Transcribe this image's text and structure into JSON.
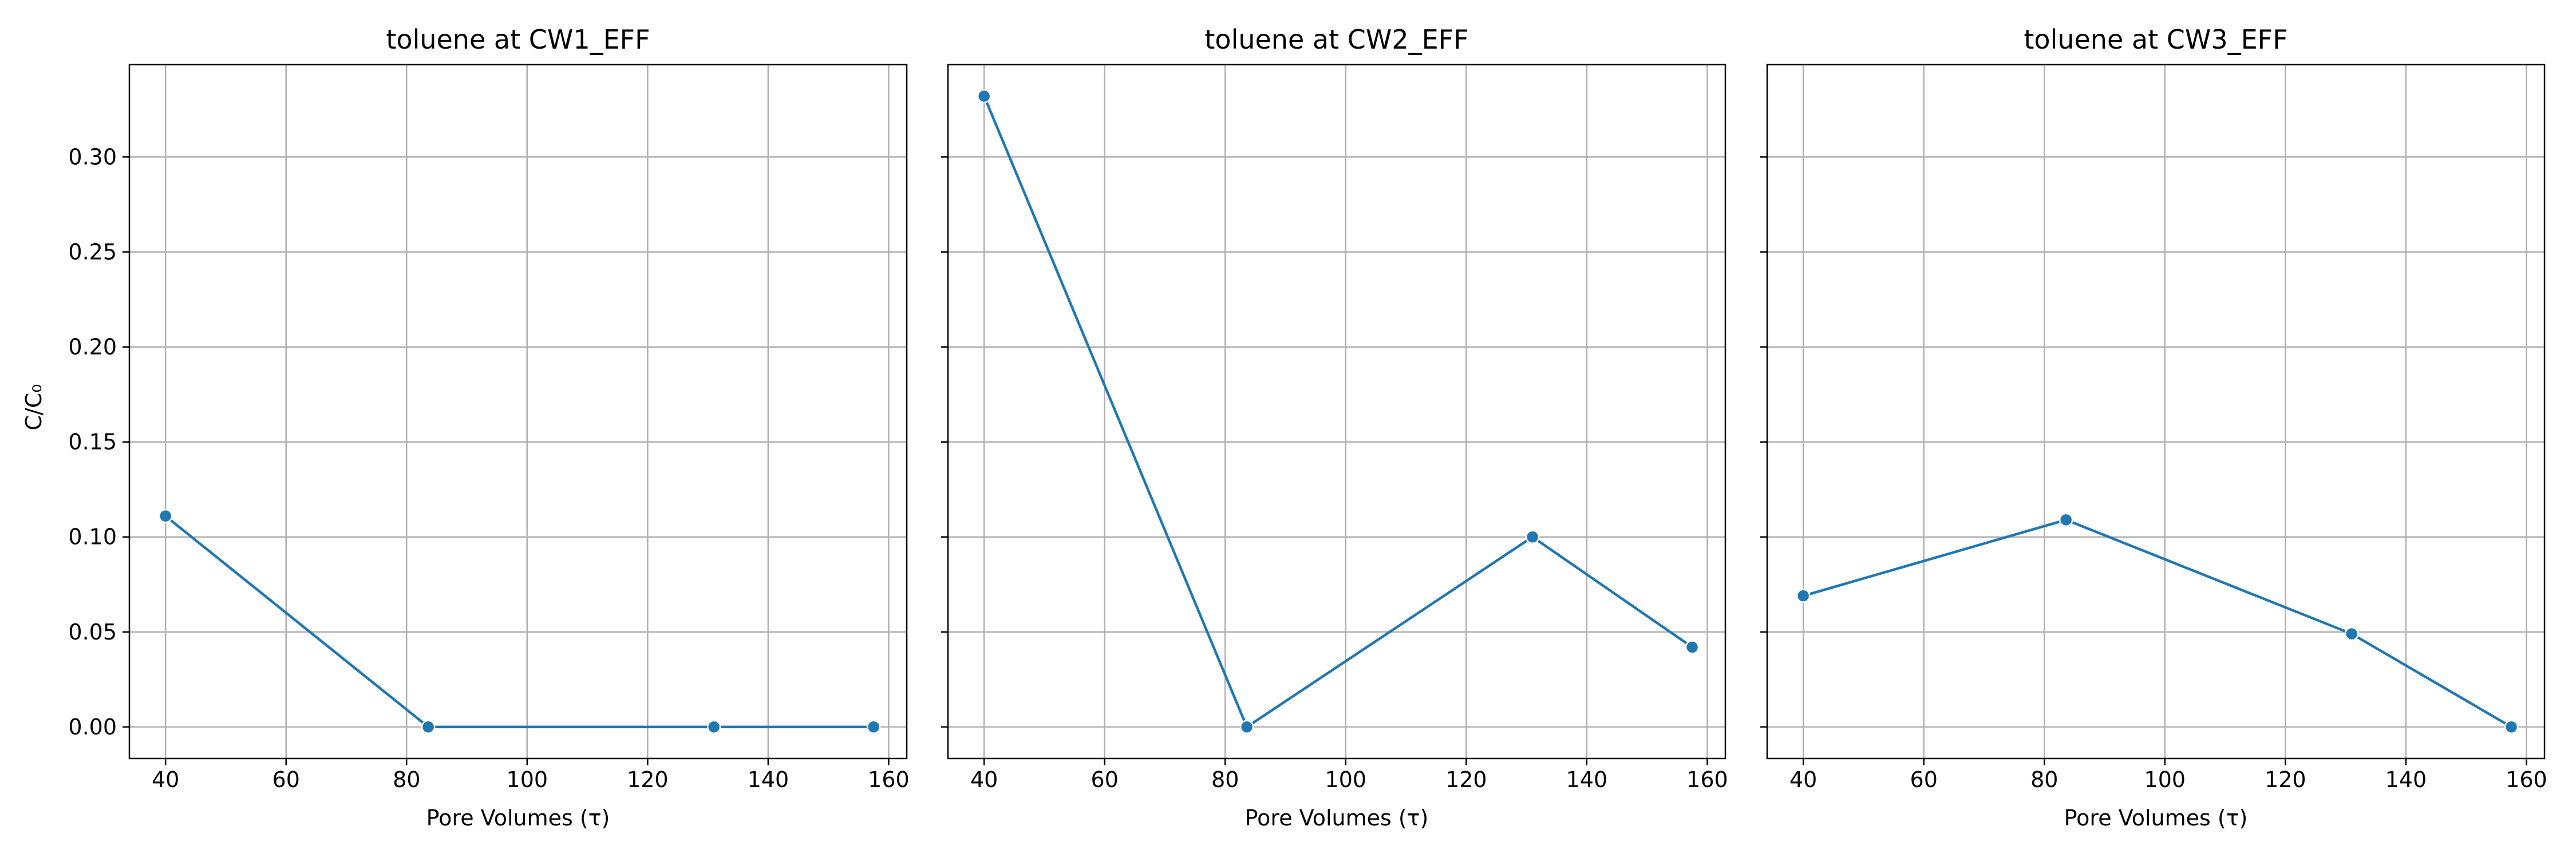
{
  "chart_data": [
    {
      "type": "line",
      "title": "toluene at CW1_EFF",
      "xlabel": "Pore Volumes (τ)",
      "ylabel": "C/C₀",
      "xlim": [
        34,
        163
      ],
      "ylim": [
        -0.0166,
        0.3486
      ],
      "xticks": [
        40,
        60,
        80,
        100,
        120,
        140,
        160
      ],
      "yticks": [
        0.0,
        0.05,
        0.1,
        0.15,
        0.2,
        0.25,
        0.3
      ],
      "ytick_labels": [
        "0.00",
        "0.05",
        "0.10",
        "0.15",
        "0.20",
        "0.25",
        "0.30"
      ],
      "show_yticklabels": true,
      "grid": true,
      "color": "#1f77b4",
      "x": [
        40,
        83.6,
        131,
        157.5
      ],
      "y": [
        0.111,
        0.0,
        0.0,
        0.0
      ]
    },
    {
      "type": "line",
      "title": "toluene at CW2_EFF",
      "xlabel": "Pore Volumes (τ)",
      "ylabel": "",
      "xlim": [
        34,
        163
      ],
      "ylim": [
        -0.0166,
        0.3486
      ],
      "xticks": [
        40,
        60,
        80,
        100,
        120,
        140,
        160
      ],
      "yticks": [
        0.0,
        0.05,
        0.1,
        0.15,
        0.2,
        0.25,
        0.3
      ],
      "ytick_labels": [
        "0.00",
        "0.05",
        "0.10",
        "0.15",
        "0.20",
        "0.25",
        "0.30"
      ],
      "show_yticklabels": false,
      "grid": true,
      "color": "#1f77b4",
      "x": [
        40,
        83.6,
        131,
        157.5
      ],
      "y": [
        0.332,
        0.0,
        0.1,
        0.042
      ]
    },
    {
      "type": "line",
      "title": "toluene at CW3_EFF",
      "xlabel": "Pore Volumes (τ)",
      "ylabel": "",
      "xlim": [
        34,
        163
      ],
      "ylim": [
        -0.0166,
        0.3486
      ],
      "xticks": [
        40,
        60,
        80,
        100,
        120,
        140,
        160
      ],
      "yticks": [
        0.0,
        0.05,
        0.1,
        0.15,
        0.2,
        0.25,
        0.3
      ],
      "ytick_labels": [
        "0.00",
        "0.05",
        "0.10",
        "0.15",
        "0.20",
        "0.25",
        "0.30"
      ],
      "show_yticklabels": false,
      "grid": true,
      "color": "#1f77b4",
      "x": [
        40,
        83.6,
        131,
        157.5
      ],
      "y": [
        0.069,
        0.109,
        0.049,
        0.0
      ]
    }
  ]
}
